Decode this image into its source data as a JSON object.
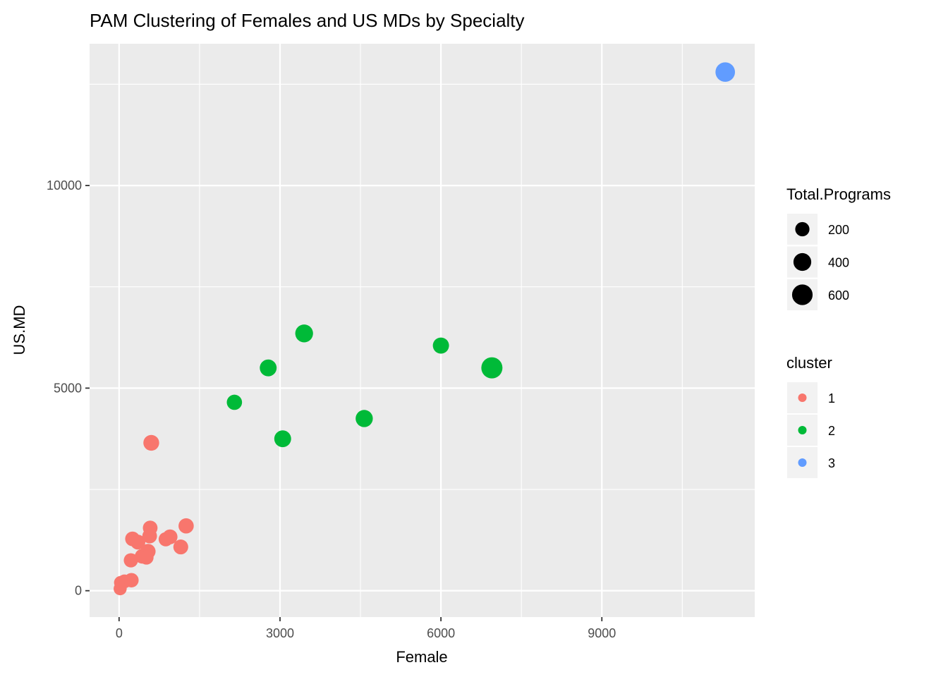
{
  "chart_data": {
    "type": "scatter",
    "title": "PAM Clustering of Females and US MDs by Specialty",
    "xlabel": "Female",
    "ylabel": "US.MD",
    "xlim": [
      -550,
      11850
    ],
    "ylim": [
      -650,
      13500
    ],
    "x_ticks": [
      0,
      3000,
      6000,
      9000
    ],
    "x_tick_labels": [
      "0",
      "3000",
      "6000",
      "9000"
    ],
    "y_ticks": [
      0,
      5000,
      10000
    ],
    "y_tick_labels": [
      "0",
      "5000",
      "10000"
    ],
    "grid": true,
    "legend_position": "right",
    "size_legend": {
      "title": "Total.Programs",
      "entries": [
        {
          "label": "200",
          "value": 200
        },
        {
          "label": "400",
          "value": 400
        },
        {
          "label": "600",
          "value": 600
        }
      ]
    },
    "color_legend": {
      "title": "cluster",
      "entries": [
        {
          "label": "1",
          "color": "#F8766D"
        },
        {
          "label": "2",
          "color": "#00BA38"
        },
        {
          "label": "3",
          "color": "#619CFF"
        }
      ]
    },
    "points": [
      {
        "x": 11300,
        "y": 12800,
        "cluster": "3",
        "size": 520
      },
      {
        "x": 6950,
        "y": 5500,
        "cluster": "2",
        "size": 650
      },
      {
        "x": 3450,
        "y": 6350,
        "cluster": "2",
        "size": 400
      },
      {
        "x": 6000,
        "y": 6050,
        "cluster": "2",
        "size": 300
      },
      {
        "x": 2780,
        "y": 5500,
        "cluster": "2",
        "size": 340
      },
      {
        "x": 2150,
        "y": 4650,
        "cluster": "2",
        "size": 250
      },
      {
        "x": 4570,
        "y": 4250,
        "cluster": "2",
        "size": 360
      },
      {
        "x": 3050,
        "y": 3750,
        "cluster": "2",
        "size": 340
      },
      {
        "x": 600,
        "y": 3650,
        "cluster": "1",
        "size": 280
      },
      {
        "x": 1250,
        "y": 1600,
        "cluster": "1",
        "size": 250
      },
      {
        "x": 580,
        "y": 1550,
        "cluster": "1",
        "size": 220
      },
      {
        "x": 570,
        "y": 1350,
        "cluster": "1",
        "size": 220
      },
      {
        "x": 950,
        "y": 1330,
        "cluster": "1",
        "size": 230
      },
      {
        "x": 870,
        "y": 1270,
        "cluster": "1",
        "size": 200
      },
      {
        "x": 250,
        "y": 1280,
        "cluster": "1",
        "size": 220
      },
      {
        "x": 350,
        "y": 1200,
        "cluster": "1",
        "size": 230
      },
      {
        "x": 1150,
        "y": 1080,
        "cluster": "1",
        "size": 230
      },
      {
        "x": 540,
        "y": 970,
        "cluster": "1",
        "size": 240
      },
      {
        "x": 430,
        "y": 850,
        "cluster": "1",
        "size": 220
      },
      {
        "x": 510,
        "y": 820,
        "cluster": "1",
        "size": 200
      },
      {
        "x": 220,
        "y": 750,
        "cluster": "1",
        "size": 200
      },
      {
        "x": 230,
        "y": 260,
        "cluster": "1",
        "size": 210
      },
      {
        "x": 100,
        "y": 230,
        "cluster": "1",
        "size": 180
      },
      {
        "x": 30,
        "y": 200,
        "cluster": "1",
        "size": 160
      },
      {
        "x": 20,
        "y": 50,
        "cluster": "1",
        "size": 150
      }
    ]
  }
}
